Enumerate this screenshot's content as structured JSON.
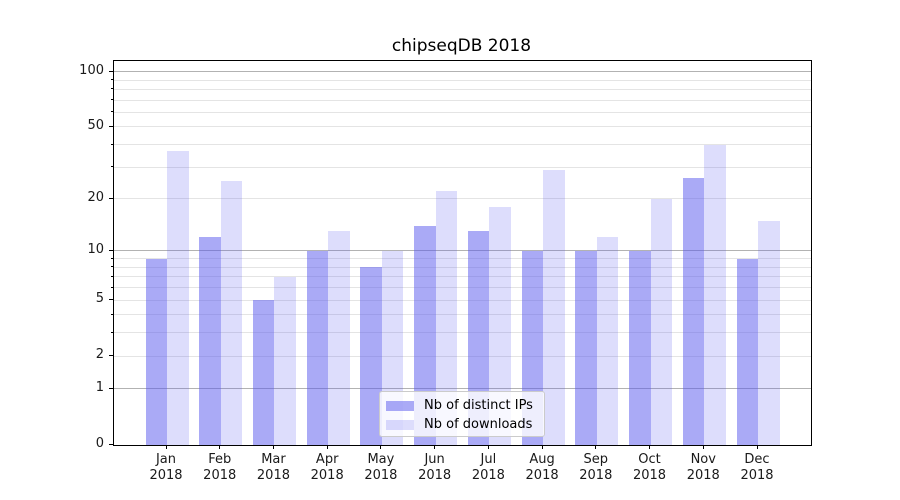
{
  "chart_data": {
    "type": "bar",
    "title": "chipseqDB 2018",
    "categories": [
      "Jan",
      "Feb",
      "Mar",
      "Apr",
      "May",
      "Jun",
      "Jul",
      "Aug",
      "Sep",
      "Oct",
      "Nov",
      "Dec"
    ],
    "category_year": "2018",
    "series": [
      {
        "name": "Nb of distinct IPs",
        "color": "rgba(85,85,238,0.5)",
        "values": [
          9,
          12,
          5,
          10,
          8,
          14,
          13,
          10,
          10,
          10,
          26,
          9
        ]
      },
      {
        "name": "Nb of downloads",
        "color": "rgba(85,85,238,0.2)",
        "values": [
          37,
          25,
          7,
          13,
          10,
          22,
          18,
          29,
          12,
          20,
          40,
          15
        ]
      }
    ],
    "xlabel": "",
    "ylabel": "",
    "yscale": "log10(1+v)",
    "ylim": [
      0,
      114
    ],
    "yticks": [
      0,
      1,
      2,
      5,
      10,
      20,
      50,
      100
    ],
    "grid": true,
    "grid_major_values": [
      1,
      10,
      100
    ],
    "grid_minor_values": [
      2,
      3,
      4,
      5,
      6,
      7,
      8,
      9,
      20,
      30,
      40,
      50,
      60,
      70,
      80,
      90
    ],
    "legend_position": "lower center"
  },
  "colors": {
    "grid_major": "#b2b2b2",
    "grid_minor": "#e4e4e4",
    "axis": "#000000",
    "background": "#ffffff",
    "bar_base": "#5555ee"
  }
}
